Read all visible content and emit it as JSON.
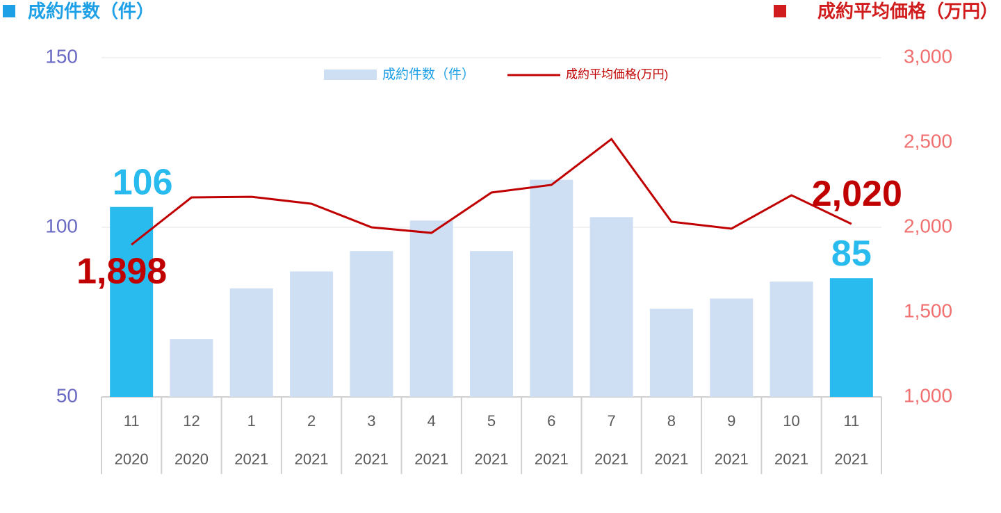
{
  "chart_data": {
    "type": "bar_line",
    "title_left": "成約件数（件）",
    "title_right": "成約平均価格（万円）",
    "categories": [
      "11",
      "12",
      "1",
      "2",
      "3",
      "4",
      "5",
      "6",
      "7",
      "8",
      "9",
      "10",
      "11"
    ],
    "years": [
      "2020",
      "2020",
      "2021",
      "2021",
      "2021",
      "2021",
      "2021",
      "2021",
      "2021",
      "2021",
      "2021",
      "2021",
      "2021"
    ],
    "series": [
      {
        "name": "成約件数（件）",
        "type": "bar",
        "color": "#cfdff3",
        "highlight_color": "#29bbee",
        "highlight": [
          true,
          false,
          false,
          false,
          false,
          false,
          false,
          false,
          false,
          false,
          false,
          false,
          true
        ],
        "values": [
          106,
          67,
          82,
          87,
          93,
          102,
          93,
          114,
          103,
          76,
          79,
          84,
          85
        ],
        "value_labels": [
          "106",
          null,
          null,
          null,
          null,
          null,
          null,
          null,
          null,
          null,
          null,
          null,
          "85"
        ]
      },
      {
        "name": "成約平均価格(万円)",
        "type": "line",
        "axis": "y2",
        "color": "#c00000",
        "values": [
          1898,
          2176,
          2180,
          2139,
          2000,
          1967,
          2205,
          2250,
          2520,
          2033,
          1992,
          2189,
          2020
        ],
        "value_labels": [
          "1,898",
          null,
          null,
          null,
          null,
          null,
          null,
          null,
          null,
          null,
          null,
          null,
          "2,020"
        ]
      }
    ],
    "ylim": [
      50,
      150
    ],
    "yticks": [
      50,
      100,
      150
    ],
    "y2lim": [
      1000,
      3000
    ],
    "y2ticks": [
      {
        "value": 1000,
        "label": "1,000"
      },
      {
        "value": 1500,
        "label": "1,500"
      },
      {
        "value": 2000,
        "label": "2,000"
      },
      {
        "value": 2500,
        "label": "2,500"
      },
      {
        "value": 3000,
        "label": "3,000"
      }
    ],
    "grid": true
  }
}
